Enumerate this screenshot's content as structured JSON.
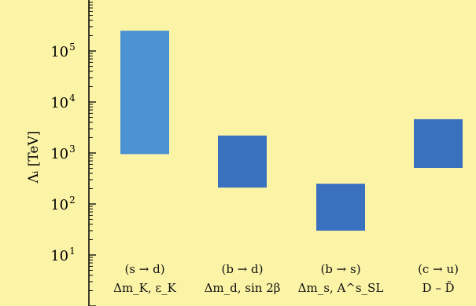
{
  "chart_data": {
    "type": "bar",
    "floating": true,
    "yscale": "log",
    "ylim": [
      1,
      1000000
    ],
    "ylabel": "Λᵢ [TeV]",
    "xlabel": "",
    "title": "",
    "categories": [
      {
        "line1": "(s → d)",
        "line2": "Δm_K, ε_K"
      },
      {
        "line1": "(b → d)",
        "line2": "Δm_d, sin 2β"
      },
      {
        "line1": "(b → s)",
        "line2": "Δm_s, A^s_SL"
      },
      {
        "line1": "(c → u)",
        "line2": "D – D̄"
      }
    ],
    "ranges": [
      [
        950,
        250000
      ],
      [
        210,
        2200
      ],
      [
        30,
        250
      ],
      [
        510,
        4600
      ]
    ],
    "yticks": [
      {
        "base": "10",
        "exp": "1",
        "value": 10
      },
      {
        "base": "10",
        "exp": "2",
        "value": 100
      },
      {
        "base": "10",
        "exp": "3",
        "value": 1000
      },
      {
        "base": "10",
        "exp": "4",
        "value": 10000
      },
      {
        "base": "10",
        "exp": "5",
        "value": 100000
      }
    ],
    "colors": {
      "background": "#fbf4a7",
      "bar_primary": "#3a71bf",
      "bar_first": "#4b92d2",
      "axis": "#000000"
    }
  }
}
